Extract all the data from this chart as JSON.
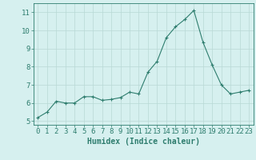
{
  "x": [
    0,
    1,
    2,
    3,
    4,
    5,
    6,
    7,
    8,
    9,
    10,
    11,
    12,
    13,
    14,
    15,
    16,
    17,
    18,
    19,
    20,
    21,
    22,
    23
  ],
  "y": [
    5.2,
    5.5,
    6.1,
    6.0,
    6.0,
    6.35,
    6.35,
    6.15,
    6.2,
    6.3,
    6.6,
    6.5,
    7.7,
    8.3,
    9.6,
    10.2,
    10.6,
    11.1,
    9.35,
    8.1,
    7.0,
    6.5,
    6.6,
    6.7
  ],
  "xlabel": "Humidex (Indice chaleur)",
  "xlim": [
    -0.5,
    23.5
  ],
  "ylim": [
    4.8,
    11.5
  ],
  "yticks": [
    5,
    6,
    7,
    8,
    9,
    10,
    11
  ],
  "xticks": [
    0,
    1,
    2,
    3,
    4,
    5,
    6,
    7,
    8,
    9,
    10,
    11,
    12,
    13,
    14,
    15,
    16,
    17,
    18,
    19,
    20,
    21,
    22,
    23
  ],
  "line_color": "#2e7d6e",
  "marker_color": "#2e7d6e",
  "bg_color": "#d6f0ef",
  "grid_color": "#b8d8d5",
  "tick_color": "#2e7d6e",
  "xlabel_fontsize": 7,
  "tick_fontsize": 6.5
}
